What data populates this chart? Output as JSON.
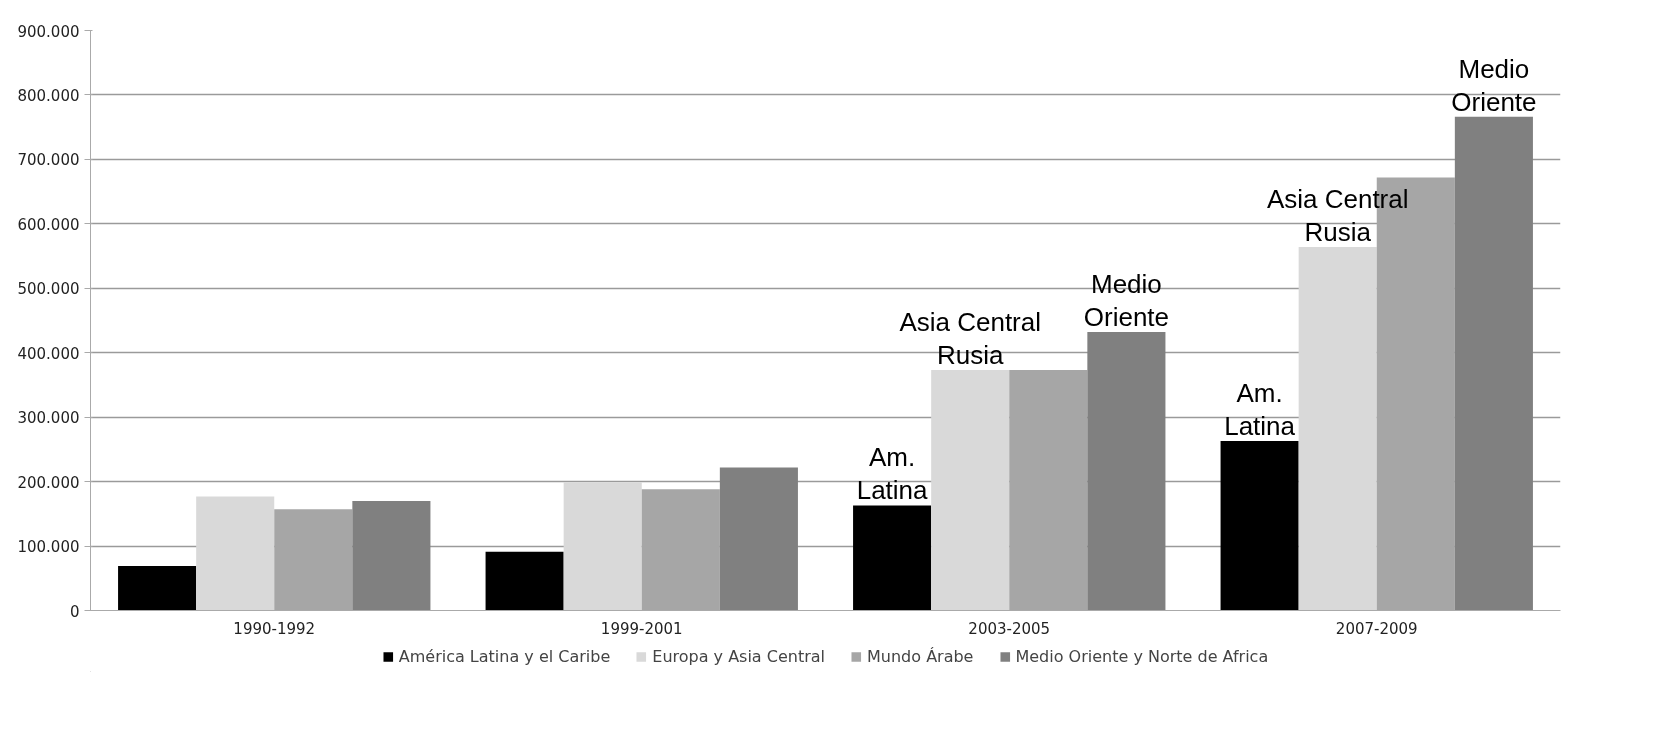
{
  "chart_data": {
    "type": "bar",
    "categories": [
      "1990-1992",
      "1999-2001",
      "2003-2005",
      "2007-2009"
    ],
    "series": [
      {
        "name": "América Latina y el Caribe",
        "color": "#000000",
        "values": [
          69000,
          91000,
          163000,
          263000
        ],
        "value_labels": [
          null,
          null,
          "Am.\nLatina",
          "Am.\nLatina"
        ]
      },
      {
        "name": "Europa y Asia Central",
        "color": "#d9d9d9",
        "values": [
          177000,
          199000,
          373000,
          564000
        ],
        "value_labels": [
          null,
          null,
          "Asia Central\nRusia",
          "Asia Central\nRusia"
        ]
      },
      {
        "name": "Mundo Árabe",
        "color": "#a6a6a6",
        "values": [
          157000,
          188000,
          373000,
          672000
        ]
      },
      {
        "name": "Medio Oriente y Norte de Africa",
        "color": "#808080",
        "values": [
          170000,
          222000,
          432000,
          766000
        ],
        "value_labels": [
          null,
          null,
          "Medio\nOriente",
          "Medio\nOriente"
        ]
      }
    ],
    "ylim": [
      0,
      900000
    ],
    "yticks": [
      {
        "value": 0,
        "label": "0"
      },
      {
        "value": 100000,
        "label": "100.000"
      },
      {
        "value": 200000,
        "label": "200.000"
      },
      {
        "value": 300000,
        "label": "300.000"
      },
      {
        "value": 400000,
        "label": "400.000"
      },
      {
        "value": 500000,
        "label": "500.000"
      },
      {
        "value": 600000,
        "label": "600.000"
      },
      {
        "value": 700000,
        "label": "700.000"
      },
      {
        "value": 800000,
        "label": "800.000"
      },
      {
        "value": 900000,
        "label": "900.000"
      }
    ],
    "grid": "y",
    "legend": "bottom"
  }
}
